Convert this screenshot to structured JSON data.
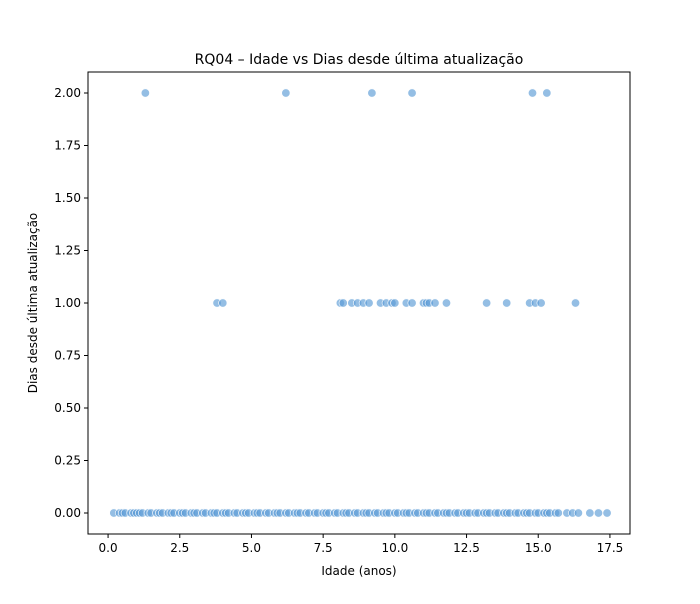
{
  "chart_data": {
    "type": "scatter",
    "title": "RQ04 – Idade vs Dias desde última atualização",
    "xlabel": "Idade (anos)",
    "ylabel": "Dias desde última atualização",
    "xlim": [
      -0.7,
      18.2
    ],
    "ylim": [
      -0.1,
      2.1
    ],
    "x_ticks": [
      0.0,
      2.5,
      5.0,
      7.5,
      10.0,
      12.5,
      15.0,
      17.5
    ],
    "x_tick_labels": [
      "0.0",
      "2.5",
      "5.0",
      "7.5",
      "10.0",
      "12.5",
      "15.0",
      "17.5"
    ],
    "y_ticks": [
      0.0,
      0.25,
      0.5,
      0.75,
      1.0,
      1.25,
      1.5,
      1.75,
      2.0
    ],
    "y_tick_labels": [
      "0.00",
      "0.25",
      "0.50",
      "0.75",
      "1.00",
      "1.25",
      "1.50",
      "1.75",
      "2.00"
    ],
    "grid": false,
    "legend": "none",
    "marker_color": "#5b9bd5",
    "marker_edge_color": "#ffffff",
    "marker_alpha": 0.65,
    "series": [
      {
        "points": [
          {
            "x": 1.3,
            "y": 2
          },
          {
            "x": 6.2,
            "y": 2
          },
          {
            "x": 9.2,
            "y": 2
          },
          {
            "x": 10.6,
            "y": 2
          },
          {
            "x": 14.8,
            "y": 2
          },
          {
            "x": 15.3,
            "y": 2
          },
          {
            "x": 3.8,
            "y": 1
          },
          {
            "x": 4.0,
            "y": 1
          },
          {
            "x": 8.1,
            "y": 1
          },
          {
            "x": 8.2,
            "y": 1
          },
          {
            "x": 8.5,
            "y": 1
          },
          {
            "x": 8.7,
            "y": 1
          },
          {
            "x": 8.9,
            "y": 1
          },
          {
            "x": 9.1,
            "y": 1
          },
          {
            "x": 9.5,
            "y": 1
          },
          {
            "x": 9.7,
            "y": 1
          },
          {
            "x": 9.9,
            "y": 1
          },
          {
            "x": 10.0,
            "y": 1
          },
          {
            "x": 10.4,
            "y": 1
          },
          {
            "x": 10.6,
            "y": 1
          },
          {
            "x": 11.0,
            "y": 1
          },
          {
            "x": 11.1,
            "y": 1
          },
          {
            "x": 11.2,
            "y": 1
          },
          {
            "x": 11.4,
            "y": 1
          },
          {
            "x": 11.8,
            "y": 1
          },
          {
            "x": 13.2,
            "y": 1
          },
          {
            "x": 13.9,
            "y": 1
          },
          {
            "x": 14.7,
            "y": 1
          },
          {
            "x": 14.9,
            "y": 1
          },
          {
            "x": 15.1,
            "y": 1
          },
          {
            "x": 16.3,
            "y": 1
          },
          {
            "x": 0.2,
            "y": 0
          },
          {
            "x": 0.4,
            "y": 0
          },
          {
            "x": 0.5,
            "y": 0
          },
          {
            "x": 0.6,
            "y": 0
          },
          {
            "x": 0.8,
            "y": 0
          },
          {
            "x": 0.9,
            "y": 0
          },
          {
            "x": 1.0,
            "y": 0
          },
          {
            "x": 1.1,
            "y": 0
          },
          {
            "x": 1.2,
            "y": 0
          },
          {
            "x": 1.4,
            "y": 0
          },
          {
            "x": 1.5,
            "y": 0
          },
          {
            "x": 1.7,
            "y": 0
          },
          {
            "x": 1.8,
            "y": 0
          },
          {
            "x": 1.9,
            "y": 0
          },
          {
            "x": 2.1,
            "y": 0
          },
          {
            "x": 2.2,
            "y": 0
          },
          {
            "x": 2.3,
            "y": 0
          },
          {
            "x": 2.5,
            "y": 0
          },
          {
            "x": 2.6,
            "y": 0
          },
          {
            "x": 2.7,
            "y": 0
          },
          {
            "x": 2.9,
            "y": 0
          },
          {
            "x": 3.0,
            "y": 0
          },
          {
            "x": 3.1,
            "y": 0
          },
          {
            "x": 3.3,
            "y": 0
          },
          {
            "x": 3.4,
            "y": 0
          },
          {
            "x": 3.6,
            "y": 0
          },
          {
            "x": 3.7,
            "y": 0
          },
          {
            "x": 3.8,
            "y": 0
          },
          {
            "x": 4.0,
            "y": 0
          },
          {
            "x": 4.1,
            "y": 0
          },
          {
            "x": 4.2,
            "y": 0
          },
          {
            "x": 4.4,
            "y": 0
          },
          {
            "x": 4.5,
            "y": 0
          },
          {
            "x": 4.7,
            "y": 0
          },
          {
            "x": 4.8,
            "y": 0
          },
          {
            "x": 4.9,
            "y": 0
          },
          {
            "x": 5.1,
            "y": 0
          },
          {
            "x": 5.2,
            "y": 0
          },
          {
            "x": 5.3,
            "y": 0
          },
          {
            "x": 5.5,
            "y": 0
          },
          {
            "x": 5.6,
            "y": 0
          },
          {
            "x": 5.8,
            "y": 0
          },
          {
            "x": 5.9,
            "y": 0
          },
          {
            "x": 6.0,
            "y": 0
          },
          {
            "x": 6.2,
            "y": 0
          },
          {
            "x": 6.3,
            "y": 0
          },
          {
            "x": 6.5,
            "y": 0
          },
          {
            "x": 6.6,
            "y": 0
          },
          {
            "x": 6.7,
            "y": 0
          },
          {
            "x": 6.9,
            "y": 0
          },
          {
            "x": 7.0,
            "y": 0
          },
          {
            "x": 7.2,
            "y": 0
          },
          {
            "x": 7.3,
            "y": 0
          },
          {
            "x": 7.5,
            "y": 0
          },
          {
            "x": 7.6,
            "y": 0
          },
          {
            "x": 7.7,
            "y": 0
          },
          {
            "x": 7.9,
            "y": 0
          },
          {
            "x": 8.0,
            "y": 0
          },
          {
            "x": 8.2,
            "y": 0
          },
          {
            "x": 8.3,
            "y": 0
          },
          {
            "x": 8.4,
            "y": 0
          },
          {
            "x": 8.6,
            "y": 0
          },
          {
            "x": 8.7,
            "y": 0
          },
          {
            "x": 8.9,
            "y": 0
          },
          {
            "x": 9.0,
            "y": 0
          },
          {
            "x": 9.1,
            "y": 0
          },
          {
            "x": 9.3,
            "y": 0
          },
          {
            "x": 9.4,
            "y": 0
          },
          {
            "x": 9.6,
            "y": 0
          },
          {
            "x": 9.7,
            "y": 0
          },
          {
            "x": 9.8,
            "y": 0
          },
          {
            "x": 10.0,
            "y": 0
          },
          {
            "x": 10.1,
            "y": 0
          },
          {
            "x": 10.3,
            "y": 0
          },
          {
            "x": 10.4,
            "y": 0
          },
          {
            "x": 10.5,
            "y": 0
          },
          {
            "x": 10.7,
            "y": 0
          },
          {
            "x": 10.8,
            "y": 0
          },
          {
            "x": 11.0,
            "y": 0
          },
          {
            "x": 11.1,
            "y": 0
          },
          {
            "x": 11.2,
            "y": 0
          },
          {
            "x": 11.4,
            "y": 0
          },
          {
            "x": 11.5,
            "y": 0
          },
          {
            "x": 11.7,
            "y": 0
          },
          {
            "x": 11.8,
            "y": 0
          },
          {
            "x": 11.9,
            "y": 0
          },
          {
            "x": 12.1,
            "y": 0
          },
          {
            "x": 12.2,
            "y": 0
          },
          {
            "x": 12.4,
            "y": 0
          },
          {
            "x": 12.5,
            "y": 0
          },
          {
            "x": 12.6,
            "y": 0
          },
          {
            "x": 12.8,
            "y": 0
          },
          {
            "x": 12.9,
            "y": 0
          },
          {
            "x": 13.1,
            "y": 0
          },
          {
            "x": 13.2,
            "y": 0
          },
          {
            "x": 13.3,
            "y": 0
          },
          {
            "x": 13.5,
            "y": 0
          },
          {
            "x": 13.6,
            "y": 0
          },
          {
            "x": 13.8,
            "y": 0
          },
          {
            "x": 13.9,
            "y": 0
          },
          {
            "x": 14.0,
            "y": 0
          },
          {
            "x": 14.2,
            "y": 0
          },
          {
            "x": 14.3,
            "y": 0
          },
          {
            "x": 14.5,
            "y": 0
          },
          {
            "x": 14.6,
            "y": 0
          },
          {
            "x": 14.7,
            "y": 0
          },
          {
            "x": 14.9,
            "y": 0
          },
          {
            "x": 15.0,
            "y": 0
          },
          {
            "x": 15.2,
            "y": 0
          },
          {
            "x": 15.3,
            "y": 0
          },
          {
            "x": 15.4,
            "y": 0
          },
          {
            "x": 15.6,
            "y": 0
          },
          {
            "x": 15.7,
            "y": 0
          },
          {
            "x": 16.0,
            "y": 0
          },
          {
            "x": 16.2,
            "y": 0
          },
          {
            "x": 16.4,
            "y": 0
          },
          {
            "x": 16.8,
            "y": 0
          },
          {
            "x": 17.1,
            "y": 0
          },
          {
            "x": 17.4,
            "y": 0
          }
        ]
      }
    ]
  }
}
